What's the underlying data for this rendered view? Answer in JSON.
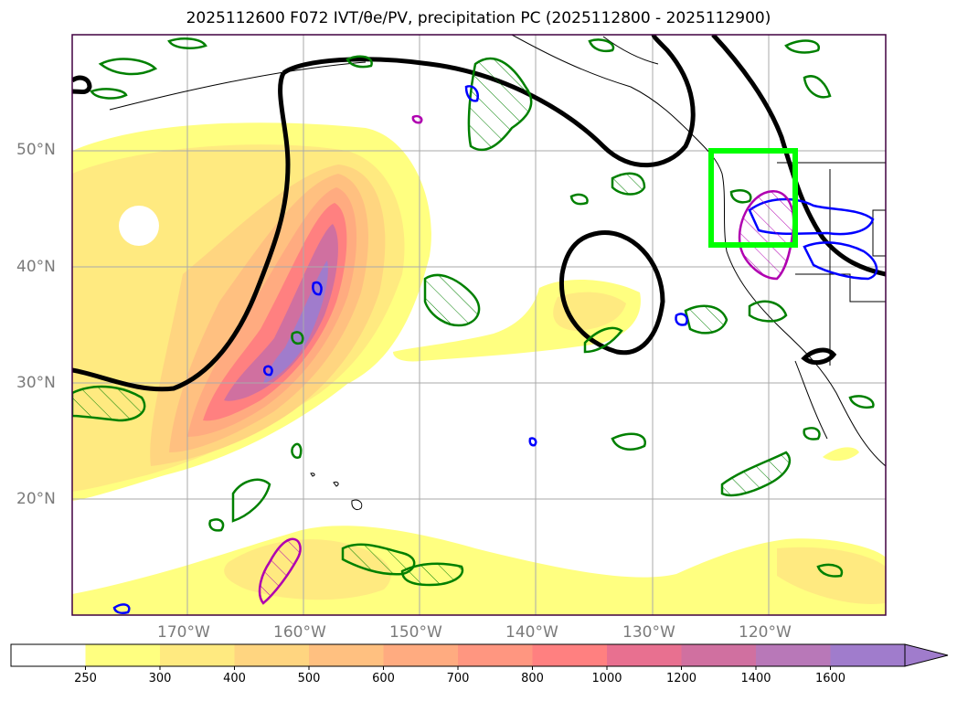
{
  "title": "2025112600 F072 IVT/θe/PV, precipitation PC (2025112800 - 2025112900)",
  "lat_labels": [
    "50°N",
    "40°N",
    "30°N",
    "20°N"
  ],
  "lon_labels": [
    "170°W",
    "160°W",
    "150°W",
    "140°W",
    "130°W",
    "120°W"
  ],
  "colorbar": {
    "levels": [
      "250",
      "300",
      "400",
      "500",
      "600",
      "700",
      "800",
      "1000",
      "1200",
      "1400",
      "1600"
    ],
    "colors": [
      "#ffffff",
      "#ffff80",
      "#ffea80",
      "#ffd580",
      "#ffc080",
      "#ffab80",
      "#ff9680",
      "#ff8080",
      "#e87090",
      "#d070a0",
      "#b878b8",
      "#a07ccc"
    ]
  },
  "map": {
    "extent": {
      "lon": [
        -180,
        -110
      ],
      "lat": [
        10,
        60
      ]
    },
    "target_box": {
      "lon": [
        -125,
        -117.5
      ],
      "lat": [
        42,
        50
      ],
      "color": "#00ff00"
    },
    "colors": {
      "theta_contour": "#000000",
      "pv_contour": "#008000",
      "precip_contour": "#0000ff",
      "pc_contour": "#b000b0"
    }
  }
}
